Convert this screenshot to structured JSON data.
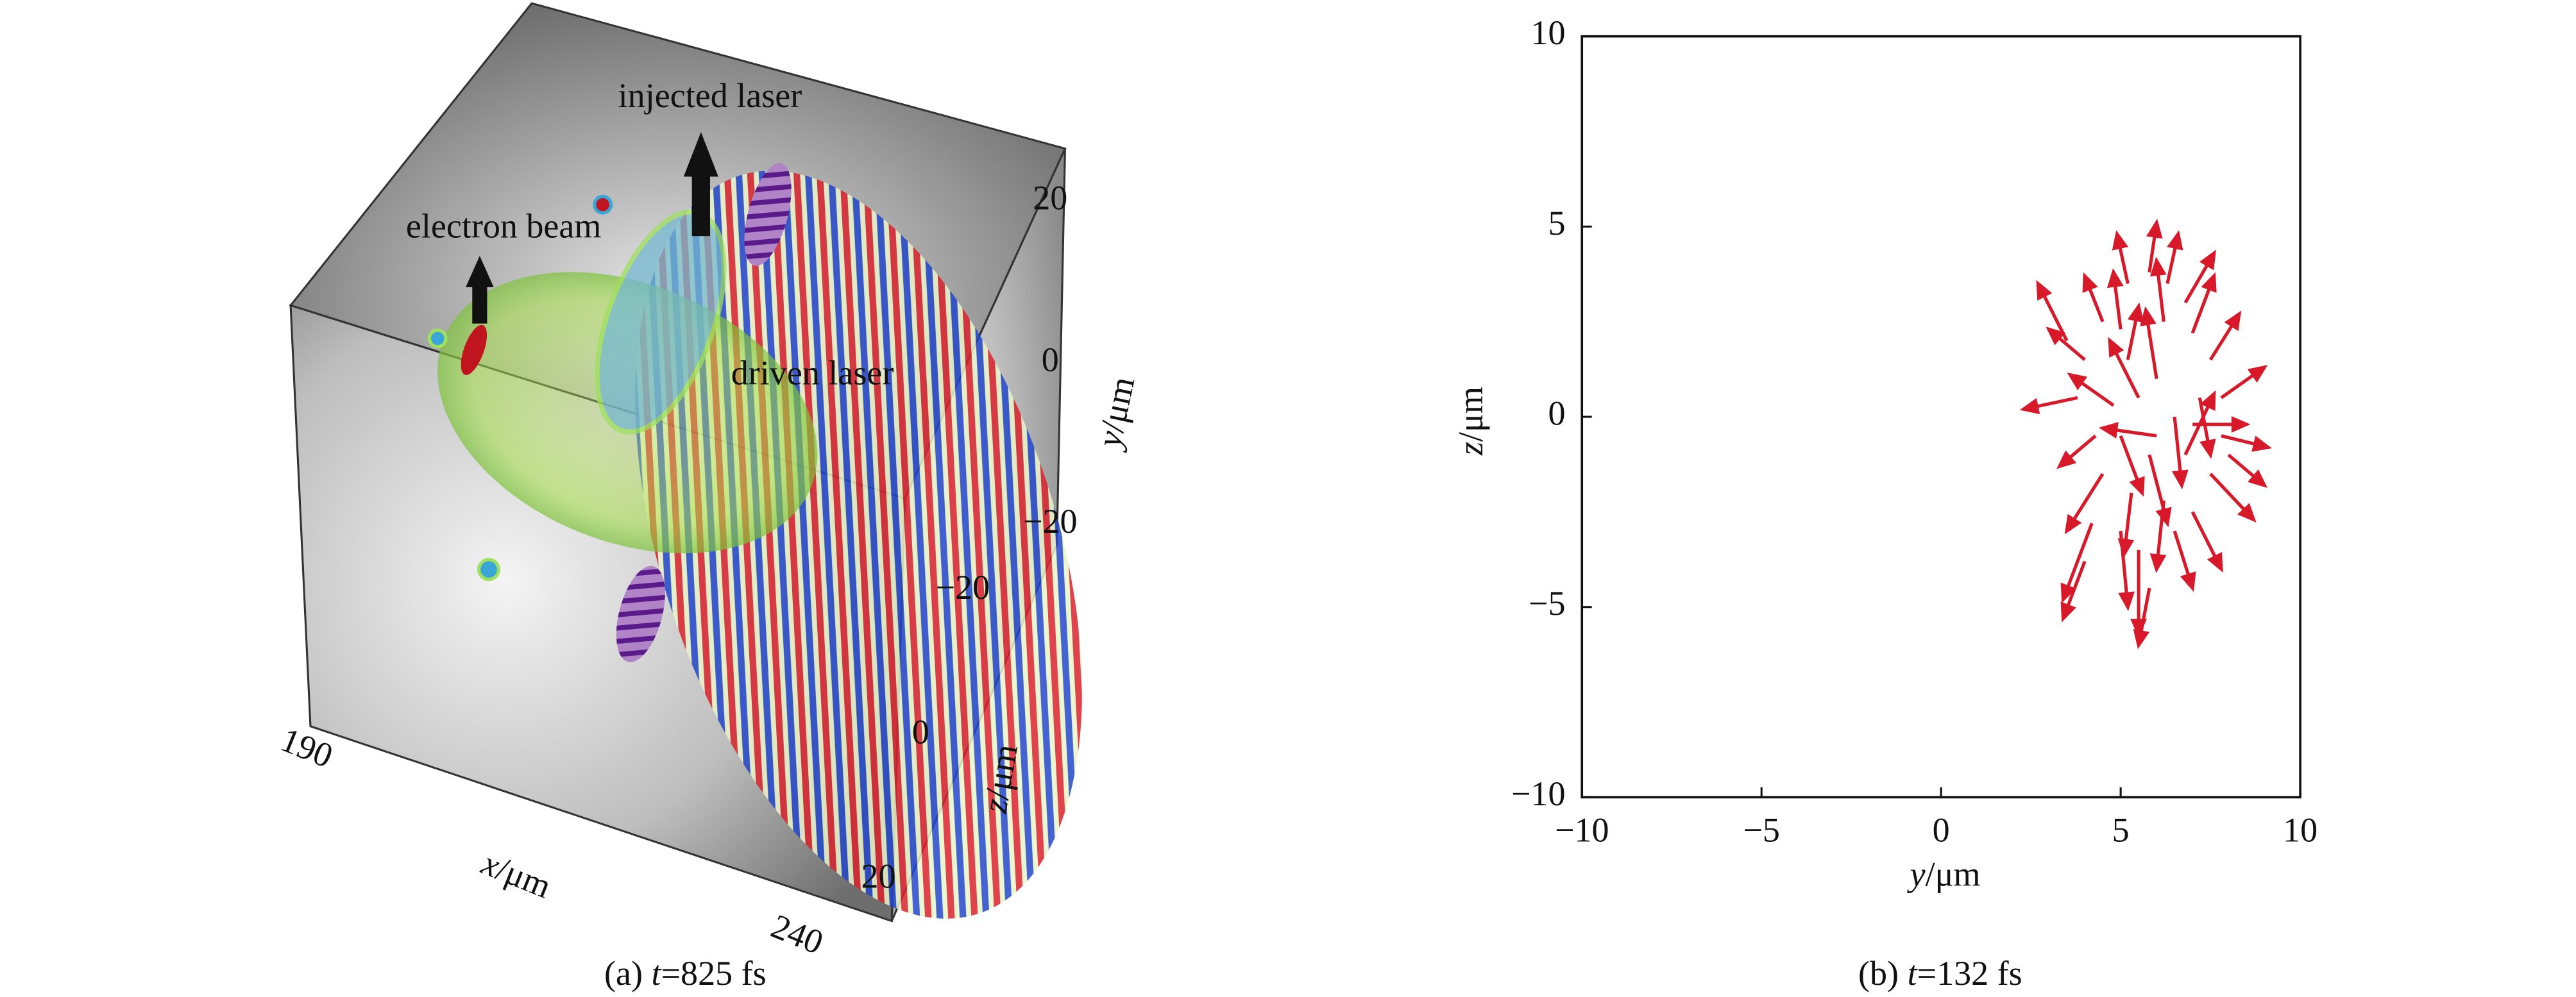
{
  "chart_data": [
    {
      "type": "volume-render",
      "annotations": [
        "injected laser",
        "electron beam",
        "driven laser"
      ],
      "caption": [
        "(a) ",
        "t",
        "=825 fs"
      ],
      "xlabel": [
        "x",
        "/μm"
      ],
      "ylabel": [
        "y",
        "/μm"
      ],
      "zlabel": [
        "z",
        "/μm"
      ],
      "xlim": [
        190,
        240
      ],
      "xticks": [
        190,
        240
      ],
      "ylim": [
        -20,
        20
      ],
      "yticks": [
        20,
        0,
        {
          "value": -20,
          "label": "−20"
        }
      ],
      "zlim": [
        -20,
        20
      ],
      "zticks": [
        {
          "value": -20,
          "label": "−20"
        },
        0,
        20
      ]
    },
    {
      "type": "quiver",
      "caption": [
        "(b) ",
        "t",
        "=132 fs"
      ],
      "xlabel": [
        "y",
        "/μm"
      ],
      "ylabel": [
        "z",
        "/μm"
      ],
      "xlim": [
        -10,
        10
      ],
      "xticks": [
        {
          "value": -10,
          "label": "−10"
        },
        {
          "value": -5,
          "label": "−5"
        },
        0,
        5,
        10
      ],
      "ylim": [
        -10,
        10
      ],
      "yticks": [
        {
          "value": -10,
          "label": "−10"
        },
        {
          "value": -5,
          "label": "−5"
        },
        0,
        5,
        10
      ],
      "color": "#d7192a",
      "x": [
        5.2,
        5.8,
        6.3,
        6.8,
        4.5,
        4.0,
        3.8,
        4.3,
        4.5,
        4.2,
        5.0,
        5.5,
        5.8,
        6.5,
        7.0,
        7.5,
        7.8,
        7.8,
        7.5,
        7.0,
        6.0,
        5.5,
        5.0,
        6.5,
        6.8,
        5.8,
        5.2,
        6.2,
        7.2,
        4.8,
        5.3,
        6.2,
        7.0,
        4.0,
        3.5,
        8.0,
        6.0,
        5.0
      ],
      "y": [
        3.5,
        3.8,
        3.5,
        3.0,
        2.5,
        1.5,
        0.5,
        -0.5,
        -1.5,
        -2.8,
        -3.0,
        -3.5,
        -4.5,
        -3.0,
        -2.5,
        -1.5,
        -0.5,
        0.5,
        1.5,
        2.2,
        1.0,
        0.5,
        -0.5,
        0.0,
        -1.0,
        -1.0,
        1.5,
        2.5,
        0.5,
        0.3,
        -2.0,
        -2.2,
        -0.2,
        -3.8,
        2.0,
        -1.0,
        -0.5,
        2.3
      ],
      "u": [
        -0.3,
        0.2,
        0.3,
        0.8,
        -0.5,
        -1.0,
        -1.5,
        -1.0,
        -1.0,
        -0.8,
        0.2,
        0.0,
        -0.3,
        0.5,
        0.8,
        1.2,
        1.3,
        1.2,
        0.8,
        0.6,
        -0.3,
        -0.8,
        0.6,
        0.2,
        0.8,
        0.5,
        0.3,
        -0.2,
        0.3,
        -1.2,
        -0.2,
        -0.2,
        1.5,
        -0.6,
        -0.8,
        1.0,
        -1.5,
        -0.2
      ],
      "v": [
        1.3,
        1.3,
        1.3,
        1.3,
        1.2,
        0.8,
        -0.3,
        -0.8,
        -1.5,
        -2.0,
        -2.0,
        -2.2,
        -1.5,
        -1.5,
        -1.5,
        -1.2,
        -0.3,
        0.8,
        1.2,
        1.5,
        1.8,
        1.5,
        -1.5,
        -1.8,
        1.6,
        -1.8,
        1.4,
        1.6,
        -1.5,
        0.8,
        -1.6,
        -1.8,
        0.0,
        -1.5,
        1.5,
        -0.8,
        0.2,
        1.5
      ]
    }
  ]
}
